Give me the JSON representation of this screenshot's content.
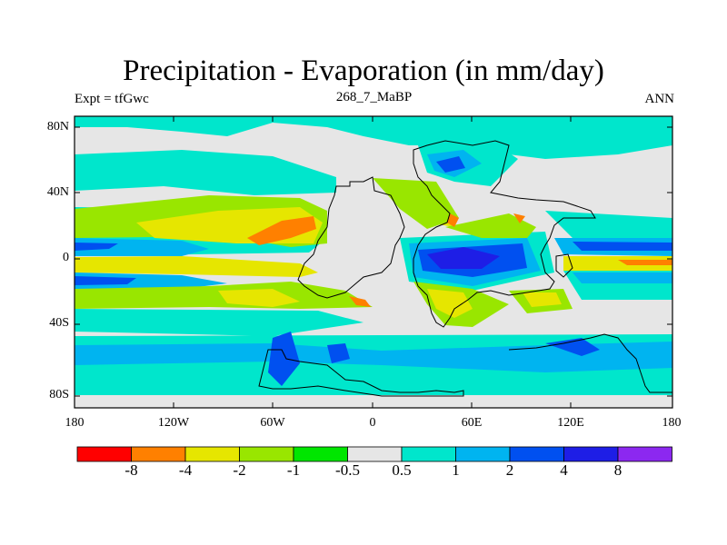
{
  "title": "Precipitation - Evaporation (in mm/day)",
  "left_label": "Expt = tfGwc",
  "center_label": "268_7_MaBP",
  "right_label": "ANN",
  "lat_labels": [
    "80N",
    "40N",
    "0",
    "40S",
    "80S"
  ],
  "lon_labels": [
    "180",
    "120W",
    "60W",
    "0",
    "60E",
    "120E",
    "180"
  ],
  "colorbar": {
    "levels": [
      "-8",
      "-4",
      "-2",
      "-1",
      "-0.5",
      "0.5",
      "1",
      "2",
      "4",
      "8"
    ],
    "colors": [
      "#ff0000",
      "#ff8000",
      "#e6e600",
      "#99e600",
      "#00e600",
      "#e6e6e6",
      "#00e6cc",
      "#00b4f0",
      "#0050f0",
      "#1e1ee6",
      "#8c28f0"
    ]
  },
  "map_colors": {
    "neutral": "#e6e6e6",
    "cyan": "#00e6cc",
    "light_blue": "#00b4f0",
    "blue": "#0050f0",
    "dark_blue": "#1e1ee6",
    "yellow": "#e6e600",
    "yellow_green": "#99e600",
    "orange": "#ff8000",
    "coast": "#000000"
  }
}
